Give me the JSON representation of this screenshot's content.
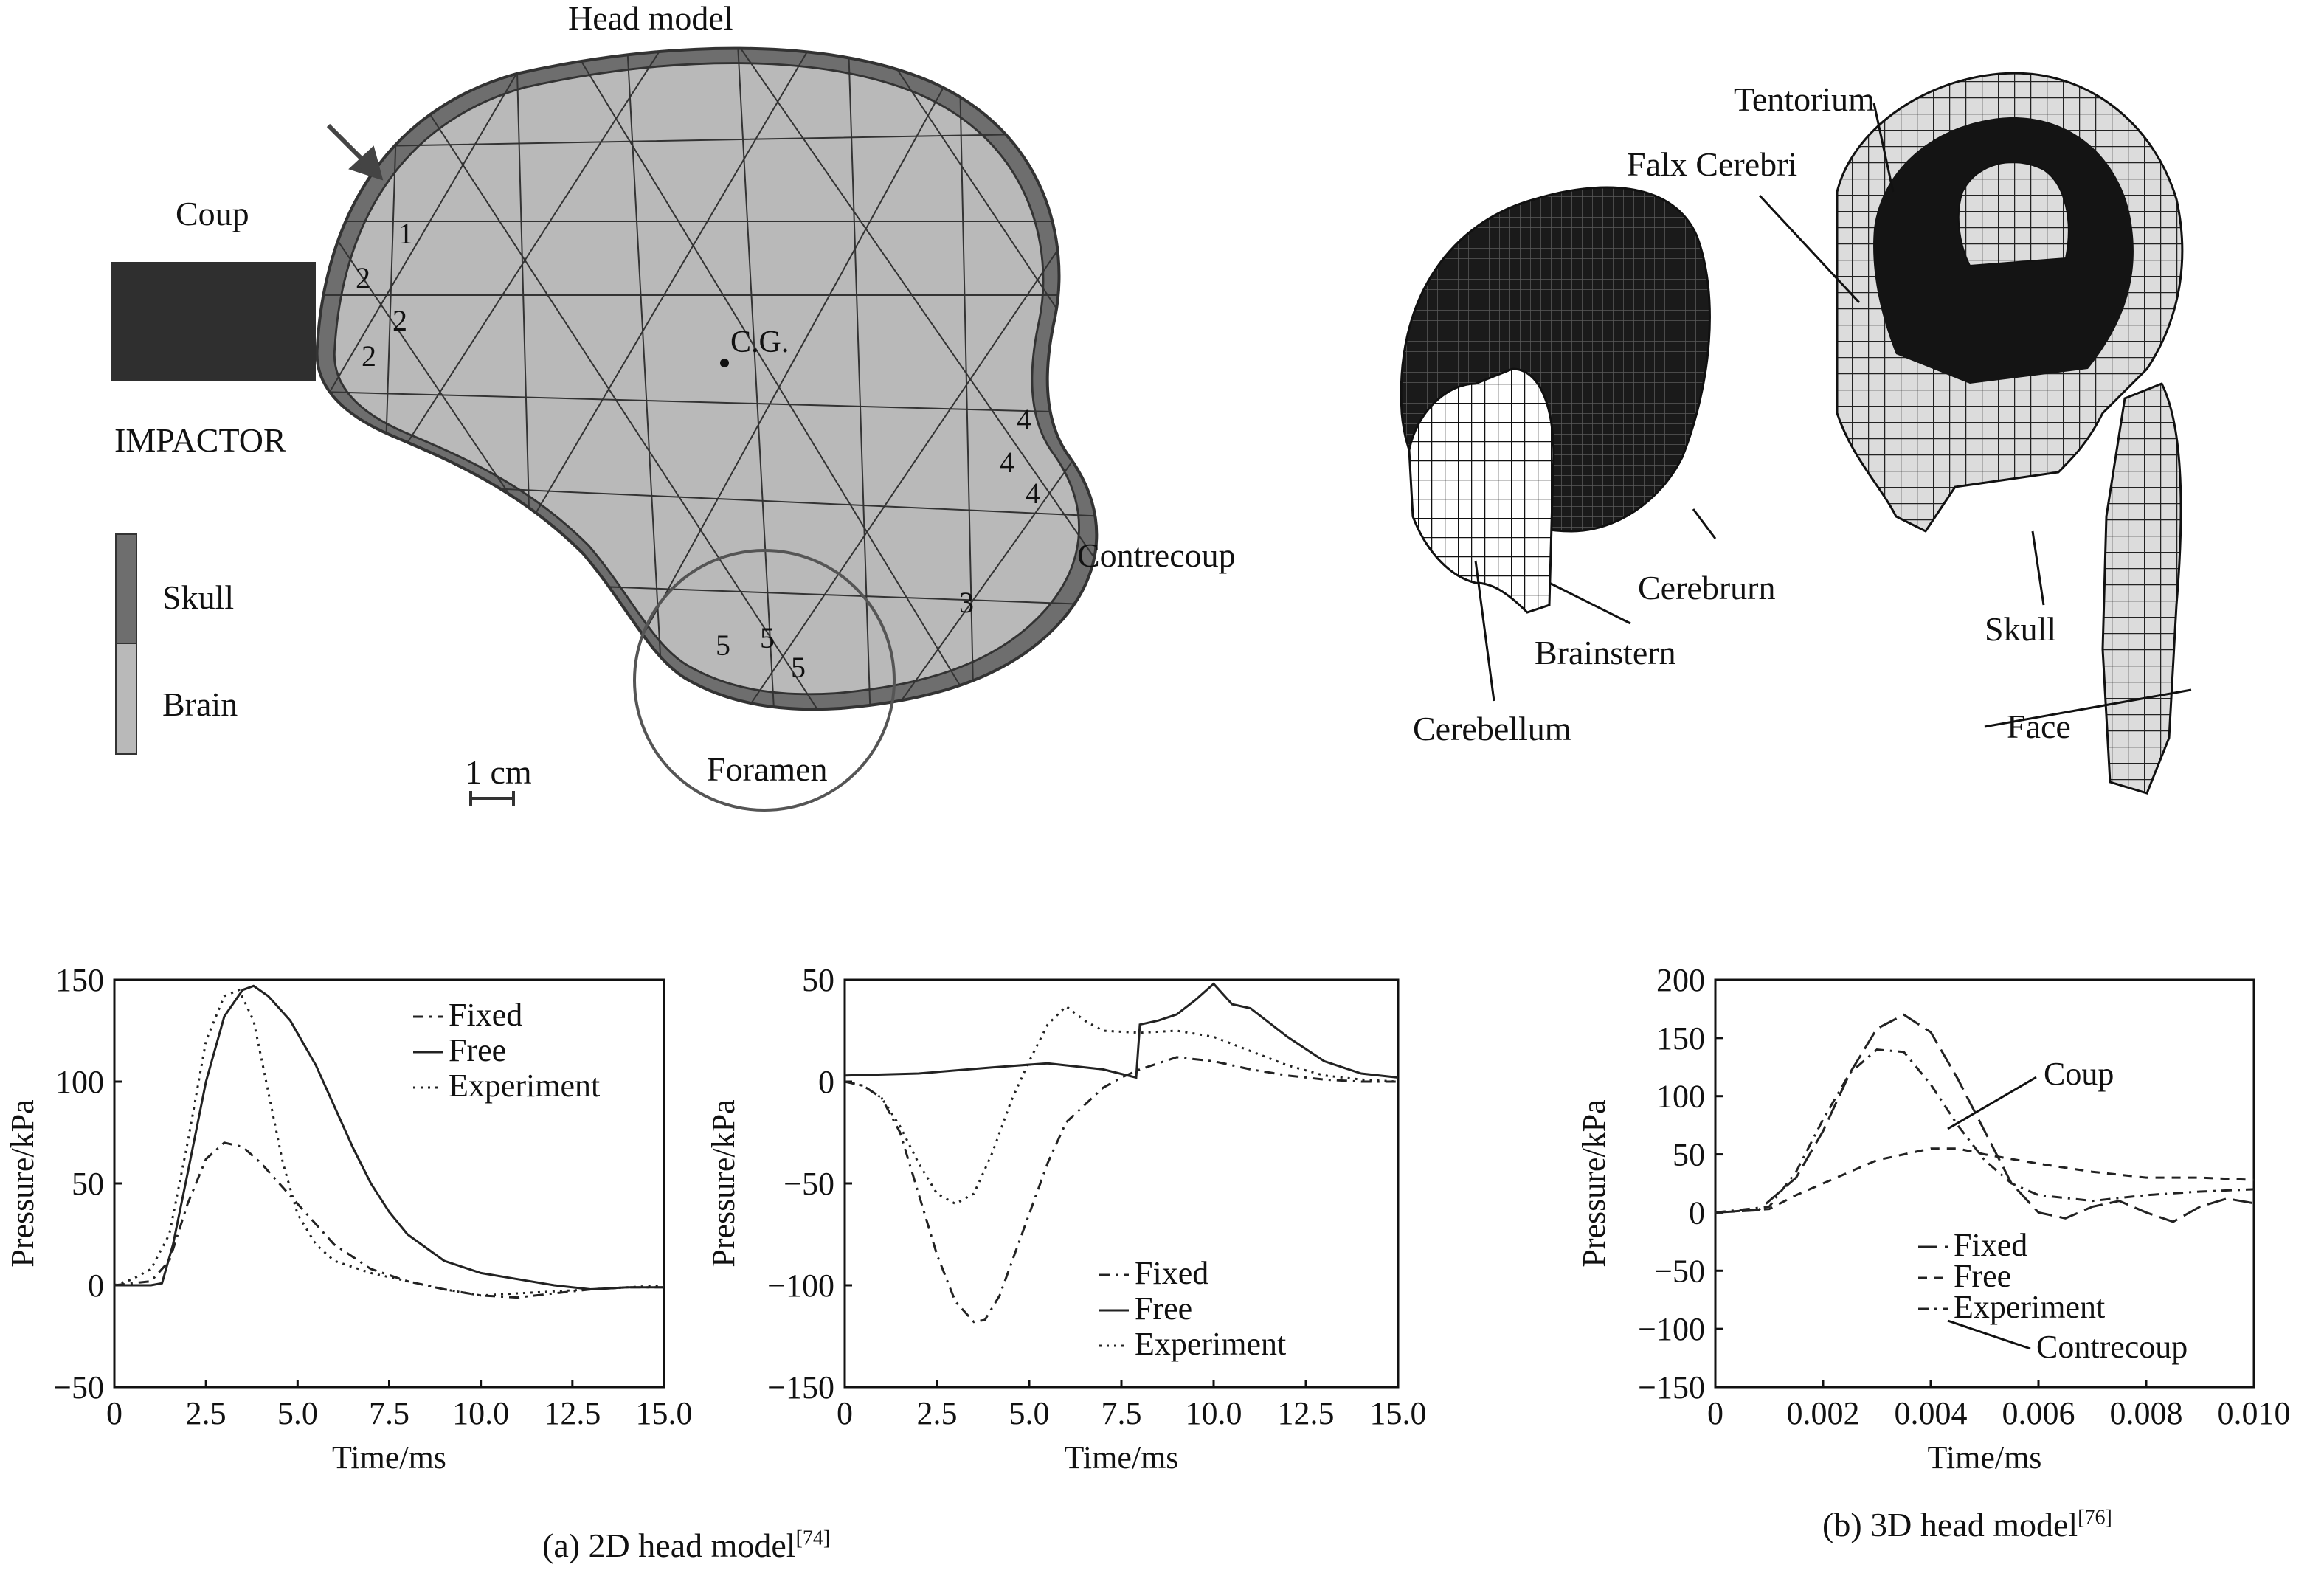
{
  "panel_2d": {
    "title": "Head model",
    "coup": "Coup",
    "impactor": "IMPACTOR",
    "legend": {
      "skull": "Skull",
      "brain": "Brain"
    },
    "cg": "C.G.",
    "contrecoup": "Contrecoup",
    "foramen": "Foramen",
    "scale": "1 cm",
    "region_numbers": [
      "1",
      "2",
      "2",
      "2",
      "4",
      "4",
      "4",
      "3",
      "5",
      "5",
      "5"
    ]
  },
  "panel_3d": {
    "labels": {
      "tentorium": "Tentorium",
      "falx": "Falx Cerebri",
      "cerebrum": "Cerebrurn",
      "brainstem": "Brainstern",
      "cerebellum": "Cerebellum",
      "skull": "Skull",
      "face": "Face"
    }
  },
  "captions": {
    "a_text": "(a) 2D head model",
    "a_ref": "[74]",
    "b_text": "(b) 3D head model",
    "b_ref": "[76]"
  },
  "chart_data": [
    {
      "type": "line",
      "xlabel": "Time/ms",
      "ylabel": "Pressure/kPa",
      "xlim": [
        0,
        15
      ],
      "ylim": [
        -50,
        150
      ],
      "xticks": [
        "0",
        "2.5",
        "5.0",
        "7.5",
        "10.0",
        "12.5",
        "15.0"
      ],
      "yticks": [
        "150",
        "100",
        "50",
        "0",
        "−50"
      ],
      "legend_position": "top-right",
      "series": [
        {
          "name": "Fixed",
          "style": "dashdot",
          "x": [
            0,
            1,
            1.5,
            2,
            2.5,
            3,
            3.5,
            4,
            4.5,
            5,
            5.5,
            6,
            7,
            8,
            9,
            10,
            11,
            12,
            13,
            14,
            15
          ],
          "y": [
            0,
            2,
            12,
            40,
            62,
            70,
            68,
            60,
            50,
            40,
            30,
            20,
            8,
            2,
            -2,
            -5,
            -6,
            -4,
            -2,
            -1,
            -1
          ]
        },
        {
          "name": "Free",
          "style": "solid",
          "x": [
            0,
            1,
            1.3,
            1.6,
            2,
            2.5,
            3,
            3.5,
            3.8,
            4.2,
            4.8,
            5.5,
            6,
            6.5,
            7,
            7.5,
            8,
            9,
            10,
            11,
            12,
            13,
            14,
            15
          ],
          "y": [
            0,
            0,
            1,
            20,
            55,
            100,
            132,
            145,
            147,
            142,
            130,
            108,
            88,
            68,
            50,
            36,
            25,
            12,
            6,
            3,
            0,
            -2,
            -1,
            -1
          ]
        },
        {
          "name": "Experiment",
          "style": "dotted",
          "x": [
            0,
            0.5,
            1,
            1.5,
            2,
            2.5,
            3,
            3.4,
            3.8,
            4.2,
            4.6,
            5,
            5.5,
            6,
            7,
            8,
            9,
            10,
            11,
            12,
            13,
            14,
            15
          ],
          "y": [
            0,
            3,
            8,
            25,
            70,
            120,
            142,
            145,
            130,
            95,
            60,
            35,
            20,
            12,
            6,
            2,
            -2,
            -5,
            -4,
            -3,
            -2,
            -1,
            0
          ]
        }
      ]
    },
    {
      "type": "line",
      "xlabel": "Time/ms",
      "ylabel": "Pressure/kPa",
      "xlim": [
        0,
        15
      ],
      "ylim": [
        -150,
        50
      ],
      "xticks": [
        "0",
        "2.5",
        "5.0",
        "7.5",
        "10.0",
        "12.5",
        "15.0"
      ],
      "yticks": [
        "50",
        "0",
        "−50",
        "−100",
        "−150"
      ],
      "legend_position": "bottom-right",
      "series": [
        {
          "name": "Fixed",
          "style": "dashdot",
          "x": [
            0,
            0.5,
            1,
            1.5,
            2,
            2.5,
            3,
            3.5,
            3.8,
            4.2,
            4.8,
            5.5,
            6,
            7,
            7.5,
            8,
            9,
            10,
            11,
            12,
            13,
            14,
            15
          ],
          "y": [
            0,
            -2,
            -8,
            -25,
            -55,
            -85,
            -108,
            -118,
            -117,
            -105,
            -75,
            -40,
            -20,
            -3,
            2,
            6,
            12,
            10,
            6,
            3,
            1,
            0,
            0
          ]
        },
        {
          "name": "Free",
          "style": "solid",
          "x": [
            0,
            2,
            4,
            5.5,
            7,
            7.9,
            8,
            8.5,
            9,
            9.5,
            10,
            10.5,
            11,
            12,
            13,
            14,
            15
          ],
          "y": [
            3,
            4,
            7,
            9,
            6,
            2,
            28,
            30,
            33,
            40,
            48,
            38,
            36,
            22,
            10,
            4,
            2
          ]
        },
        {
          "name": "Experiment",
          "style": "dotted",
          "x": [
            0,
            0.5,
            1,
            1.5,
            2,
            2.5,
            3,
            3.5,
            4,
            4.5,
            5,
            5.5,
            6,
            6.5,
            7,
            8,
            9,
            10,
            11,
            12,
            13,
            14,
            15
          ],
          "y": [
            0,
            -2,
            -8,
            -22,
            -40,
            -55,
            -60,
            -55,
            -35,
            -10,
            10,
            28,
            37,
            30,
            25,
            24,
            25,
            22,
            15,
            8,
            3,
            1,
            0
          ]
        }
      ]
    },
    {
      "type": "line",
      "xlabel": "Time/ms",
      "ylabel": "Pressure/kPa",
      "xlim": [
        0,
        0.01
      ],
      "ylim": [
        -150,
        200
      ],
      "xticks": [
        "0",
        "0.002",
        "0.004",
        "0.006",
        "0.008",
        "0.010"
      ],
      "yticks": [
        "200",
        "150",
        "100",
        "50",
        "0",
        "−50",
        "−100",
        "−150"
      ],
      "legend_position": "bottom-right",
      "annotations": [
        "Coup",
        "Contrecoup"
      ],
      "series": [
        {
          "name": "Fixed",
          "style": "longdash",
          "x": [
            0,
            0.0008,
            0.0015,
            0.002,
            0.0025,
            0.003,
            0.0035,
            0.004,
            0.0045,
            0.005,
            0.0055,
            0.006,
            0.0065,
            0.007,
            0.0075,
            0.008,
            0.0085,
            0.009,
            0.0095,
            0.01
          ],
          "y": [
            0,
            2,
            30,
            70,
            120,
            158,
            170,
            155,
            115,
            70,
            25,
            0,
            -5,
            5,
            10,
            0,
            -8,
            5,
            12,
            8
          ]
        },
        {
          "name": "Free",
          "style": "dashed",
          "x": [
            0,
            0.001,
            0.0015,
            0.002,
            0.0025,
            0.003,
            0.0035,
            0.004,
            0.0045,
            0.005,
            0.006,
            0.007,
            0.008,
            0.009,
            0.01
          ],
          "y": [
            0,
            3,
            15,
            25,
            35,
            45,
            50,
            55,
            55,
            50,
            42,
            35,
            30,
            30,
            28
          ]
        },
        {
          "name": "Experiment",
          "style": "dashdot",
          "x": [
            0,
            0.001,
            0.0015,
            0.002,
            0.0025,
            0.003,
            0.0035,
            0.004,
            0.0045,
            0.005,
            0.0055,
            0.006,
            0.007,
            0.008,
            0.009,
            0.01
          ],
          "y": [
            0,
            5,
            35,
            80,
            120,
            140,
            138,
            110,
            75,
            45,
            25,
            15,
            10,
            15,
            18,
            20
          ]
        }
      ]
    }
  ]
}
